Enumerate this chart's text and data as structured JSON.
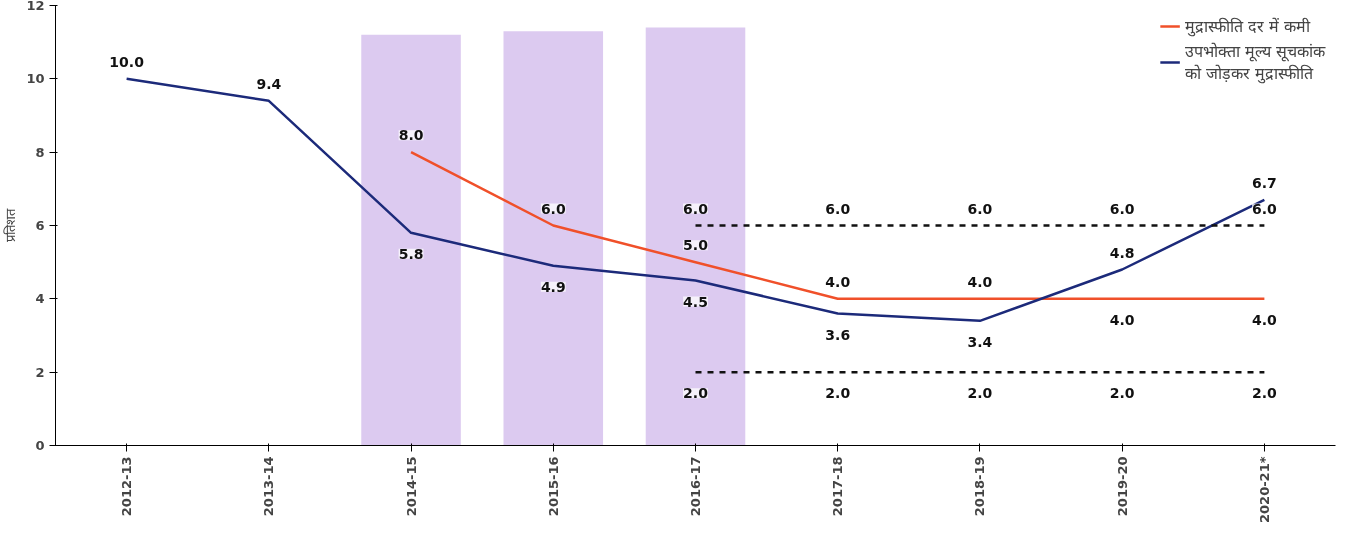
{
  "chart_data": {
    "type": "line",
    "ylabel": "प्रतिशत",
    "categories": [
      "2012-13",
      "2013-14",
      "2014-15",
      "2015-16",
      "2016-17",
      "2017-18",
      "2018-19",
      "2019-20",
      "2020-21*"
    ],
    "series": [
      {
        "type": "bar",
        "color": "#dccaf0",
        "values": [
          null,
          null,
          11.2,
          11.3,
          11.4,
          null,
          null,
          null,
          null
        ]
      },
      {
        "name": "मुद्रास्फीति दर में कमी",
        "color": "#f0502a",
        "values": [
          null,
          null,
          8.0,
          6.0,
          5.0,
          4.0,
          4.0,
          4.0,
          4.0
        ],
        "value_labels": [
          null,
          null,
          "8.0",
          "6.0",
          "5.0",
          "4.0",
          "4.0",
          "4.0",
          "4.0"
        ]
      },
      {
        "name": "उपभोक्ता मूल्य सूचकांक को जोड़कर मुद्रास्फीति",
        "color": "#1c2a7a",
        "values": [
          10.0,
          9.4,
          5.8,
          4.9,
          4.5,
          3.6,
          3.4,
          4.8,
          6.7
        ],
        "value_labels": [
          "10.0",
          "9.4",
          "5.8",
          "4.9",
          "4.5",
          "3.6",
          "3.4",
          "4.8",
          "6.7"
        ]
      },
      {
        "color": "#111111",
        "line_style": "dashed",
        "values": [
          null,
          null,
          null,
          null,
          6.0,
          6.0,
          6.0,
          6.0,
          6.0
        ],
        "value_labels": [
          null,
          null,
          null,
          null,
          "6.0",
          "6.0",
          "6.0",
          "6.0",
          "6.0"
        ]
      },
      {
        "color": "#111111",
        "line_style": "dashed",
        "values": [
          null,
          null,
          null,
          null,
          2.0,
          2.0,
          2.0,
          2.0,
          2.0
        ],
        "value_labels": [
          null,
          null,
          null,
          null,
          "2.0",
          "2.0",
          "2.0",
          "2.0",
          "2.0"
        ]
      }
    ],
    "ylim": [
      0,
      12
    ],
    "yticks": [
      0,
      2,
      4,
      6,
      8,
      10,
      12
    ],
    "grid": false,
    "legend": "top right",
    "marker": "none",
    "line_style": "solid"
  }
}
